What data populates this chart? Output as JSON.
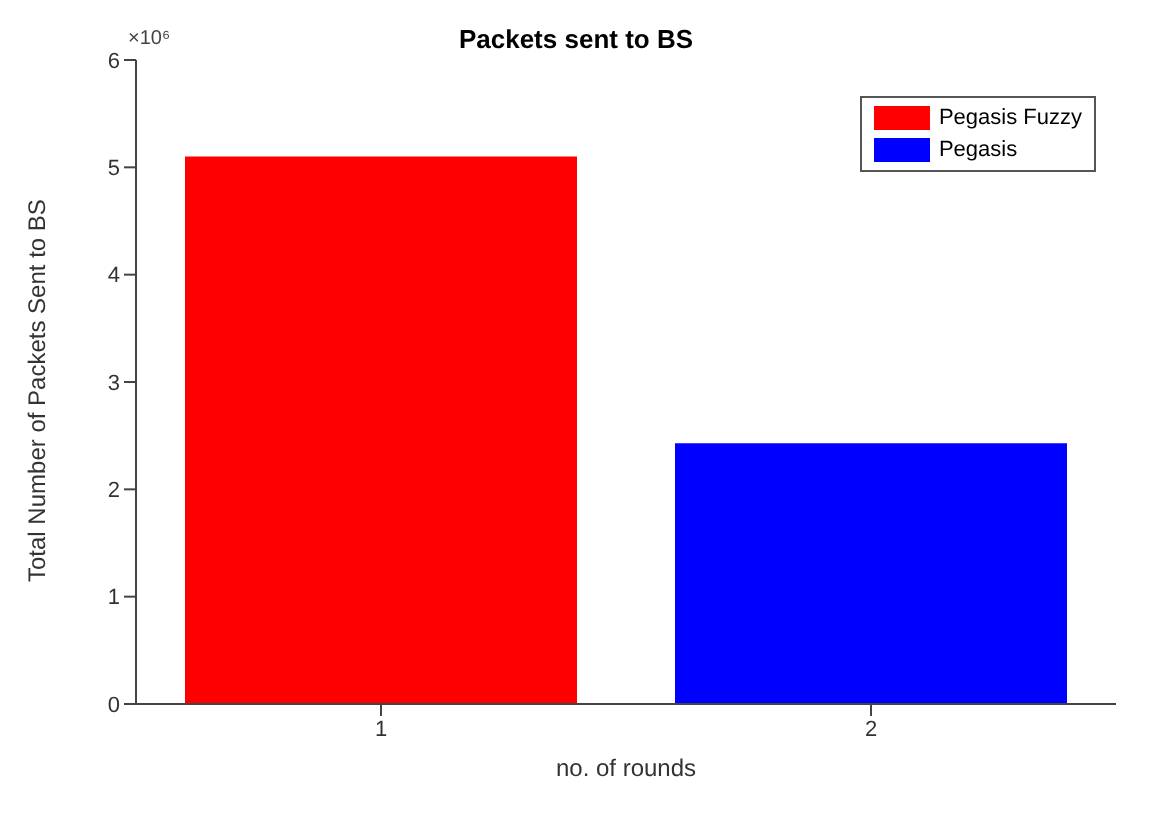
{
  "chart_data": {
    "type": "bar",
    "title": "Packets sent to BS",
    "xlabel": "no. of rounds",
    "ylabel": "Total Number of Packets Sent to BS",
    "categories": [
      "1",
      "2"
    ],
    "series": [
      {
        "name": "Pegasis Fuzzy",
        "color": "#ff0000",
        "values": [
          5.1,
          null
        ]
      },
      {
        "name": "Pegasis",
        "color": "#0000ff",
        "values": [
          null,
          2.43
        ]
      }
    ],
    "stacked": true,
    "ylim": [
      0,
      6
    ],
    "yticks": [
      0,
      1,
      2,
      3,
      4,
      5,
      6
    ],
    "annotations": [
      "×10⁶"
    ],
    "legend": "top right",
    "grid": false
  }
}
